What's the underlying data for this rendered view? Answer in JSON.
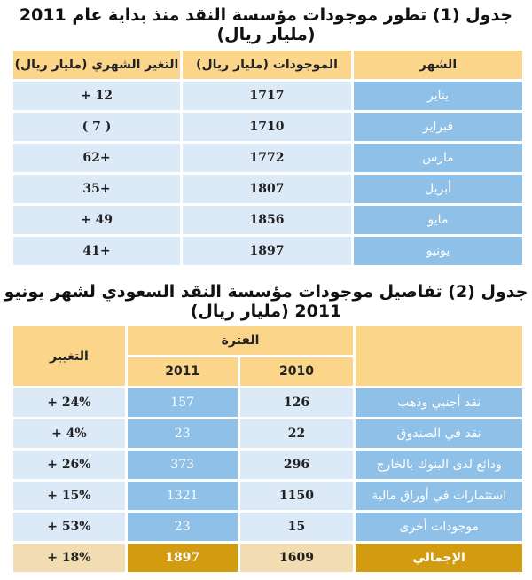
{
  "table1": {
    "title": "جدول (1) تطور موجودات مؤسسة النقد منذ بداية عام 2011 (مليار ريال)",
    "headers": [
      "الشهر",
      "الموجودات (مليار ريال)",
      "التغير الشهري (مليار ريال)"
    ],
    "rows": [
      {
        "month": "يناير",
        "assets": "1717",
        "change": "12 +"
      },
      {
        "month": "فبراير",
        "assets": "1710",
        "change": "( 7 )"
      },
      {
        "month": "مارس",
        "assets": "1772",
        "change": "+62"
      },
      {
        "month": "أبريل",
        "assets": "1807",
        "change": "+35"
      },
      {
        "month": "مايو",
        "assets": "1856",
        "change": "49 +"
      },
      {
        "month": "يونيو",
        "assets": "1897",
        "change": "+41"
      }
    ]
  },
  "table2": {
    "title": "جدول (2) تفاصيل موجودات مؤسسة النقد السعودي لشهر يونيو 2011 (مليار ريال)",
    "period_header": "الفترة",
    "change_header": "التغيير",
    "year_2010": "2010",
    "year_2011": "2011",
    "rows": [
      {
        "label": "نقد أجنبي وذهب",
        "v2010": "126",
        "v2011": "157",
        "change": "24% +"
      },
      {
        "label": "نقد في الصندوق",
        "v2010": "22",
        "v2011": "23",
        "change": "4% +"
      },
      {
        "label": "ودائع لدى البنوك بالخارج",
        "v2010": "296",
        "v2011": "373",
        "change": "26% +"
      },
      {
        "label": "استثمارات في أوراق مالية",
        "v2010": "1150",
        "v2011": "1321",
        "change": "15% +"
      },
      {
        "label": "موجودات أخرى",
        "v2010": "15",
        "v2011": "23",
        "change": "53% +"
      }
    ],
    "total": {
      "label": "الإجمالي",
      "v2010": "1609",
      "v2011": "1897",
      "change": "18% +"
    }
  }
}
